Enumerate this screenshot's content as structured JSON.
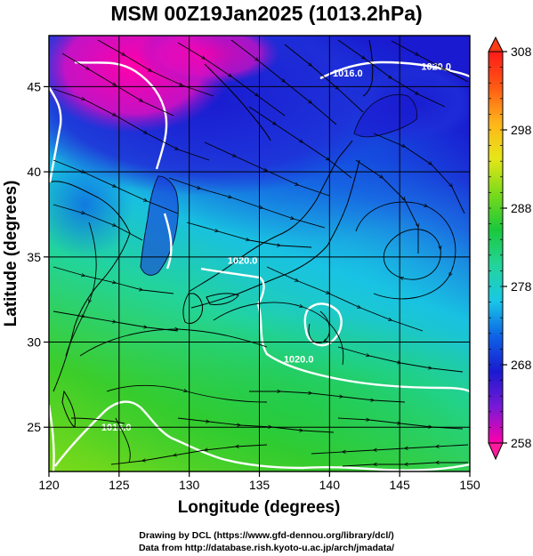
{
  "title": "MSM 00Z19Jan2025 (1013.2hPa)",
  "map": {
    "xlabel": "Longitude (degrees)",
    "ylabel": "Latitude  (degrees)",
    "lon_range": [
      120,
      150
    ],
    "lat_range": [
      22.4,
      48
    ],
    "lon_ticks": [
      "120",
      "125",
      "130",
      "135",
      "140",
      "145",
      "150"
    ],
    "lat_ticks": [
      "25",
      "30",
      "35",
      "40",
      "45"
    ],
    "isobars": [
      {
        "label": "1020.0",
        "lon": 137.8,
        "lat": 28.8
      },
      {
        "label": "1016.0",
        "lon": 124.8,
        "lat": 24.8
      },
      {
        "label": "1020.0",
        "lon": 133.8,
        "lat": 34.6
      },
      {
        "label": "1020.0",
        "lon": 147.6,
        "lat": 46.0
      },
      {
        "label": "1016.0",
        "lon": 141.3,
        "lat": 45.6
      }
    ]
  },
  "colorbar": {
    "min": 258,
    "max": 308,
    "ticks": [
      "308",
      "298",
      "288",
      "278",
      "268",
      "258"
    ],
    "stops": [
      "#ff00aa",
      "#7a19d6",
      "#1a1ad0",
      "#0d63e6",
      "#19c8e6",
      "#23d49a",
      "#1ac83c",
      "#7ada1a",
      "#e6e619",
      "#ffb41a",
      "#ff5a14",
      "#ff1a1a"
    ]
  },
  "credits": {
    "line1": "Drawing by DCL (https://www.gfd-dennou.org/library/dcl/)",
    "line2": "Data from http://database.rish.kyoto-u.ac.jp/arch/jmadata/"
  }
}
